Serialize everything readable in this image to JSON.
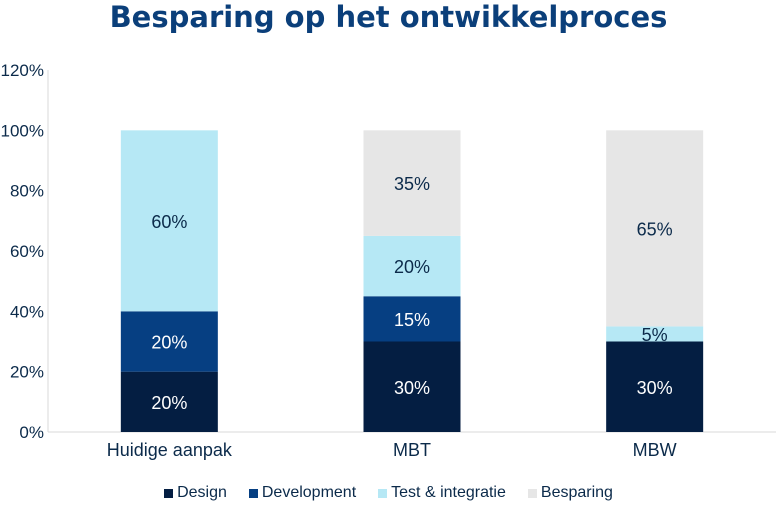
{
  "chart_data": {
    "type": "bar",
    "stacked": true,
    "title": "Besparing op het ontwikkelproces",
    "categories": [
      "Huidige aanpak",
      "MBT",
      "MBW"
    ],
    "series": [
      {
        "name": "Design",
        "values": [
          20,
          30,
          30
        ],
        "labels": [
          "20%",
          "30%",
          "30%"
        ],
        "color": "#041e42",
        "label_color": "#ffffff"
      },
      {
        "name": "Development",
        "values": [
          20,
          15,
          0
        ],
        "labels": [
          "20%",
          "15%",
          ""
        ],
        "color": "#063f82",
        "label_color": "#ffffff"
      },
      {
        "name": "Test & integratie",
        "values": [
          60,
          20,
          5
        ],
        "labels": [
          "60%",
          "20%",
          "5%"
        ],
        "color": "#b6e8f5",
        "label_color": "#0b2a4a"
      },
      {
        "name": "Besparing",
        "values": [
          0,
          35,
          65
        ],
        "labels": [
          "",
          "35%",
          "65%"
        ],
        "color": "#e6e6e6",
        "label_color": "#0b2a4a"
      }
    ],
    "yticks": [
      "0%",
      "20%",
      "40%",
      "60%",
      "80%",
      "100%",
      "120%"
    ],
    "ylim": [
      0,
      120
    ],
    "grid": false,
    "legend_position": "bottom"
  }
}
